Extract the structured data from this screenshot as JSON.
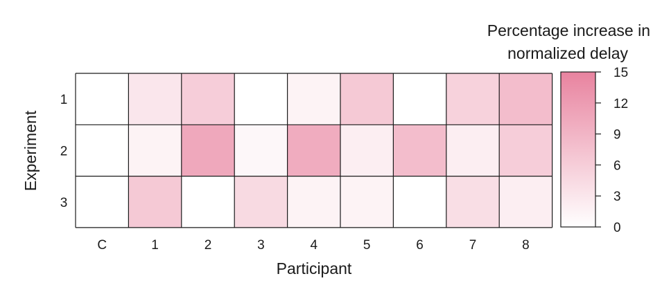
{
  "chart_data": {
    "type": "heatmap",
    "xlabel": "Participant",
    "ylabel": "Experiment",
    "x_categories": [
      "C",
      "1",
      "2",
      "3",
      "4",
      "5",
      "6",
      "7",
      "8"
    ],
    "y_categories": [
      "1",
      "2",
      "3"
    ],
    "values": [
      [
        0,
        3,
        6,
        0,
        1.5,
        6.5,
        0,
        5.5,
        8
      ],
      [
        0,
        1.5,
        10.5,
        1,
        10,
        2,
        8,
        2,
        6
      ],
      [
        0,
        6.5,
        0,
        4.5,
        1.5,
        1.5,
        0,
        4,
        2
      ]
    ],
    "colorbar": {
      "title_lines": [
        "Percentage increase in",
        "normalized delay"
      ],
      "min": 0,
      "max": 15,
      "ticks": [
        0,
        3,
        6,
        9,
        12,
        15
      ],
      "color_low": "#ffffff",
      "color_high": "#e8839f"
    },
    "grid": true
  }
}
